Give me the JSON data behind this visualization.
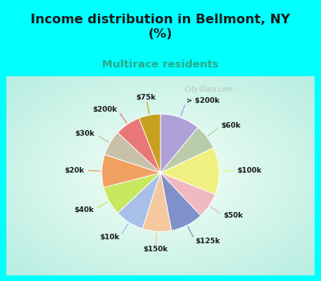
{
  "title": "Income distribution in Bellmont, NY\n(%)",
  "subtitle": "Multirace residents",
  "bg_cyan": "#00FFFF",
  "labels": [
    "> $200k",
    "$60k",
    "$100k",
    "$50k",
    "$125k",
    "$150k",
    "$10k",
    "$40k",
    "$20k",
    "$30k",
    "$200k",
    "$75k"
  ],
  "sizes": [
    11,
    7,
    13,
    7,
    9,
    8,
    8,
    8,
    9,
    7,
    7,
    6
  ],
  "colors": [
    "#b0a0d8",
    "#b8ccaa",
    "#f0f080",
    "#f0b8c0",
    "#8090c8",
    "#f5c8a0",
    "#a8c0e8",
    "#c8e860",
    "#f0a060",
    "#c8c0a8",
    "#e87878",
    "#c8a020"
  ],
  "watermark": "  City-Data.com",
  "title_color": "#1a1a1a",
  "subtitle_color": "#2aaa88",
  "label_color": "#1a1a1a",
  "label_fontsize": 6.5,
  "title_fontsize": 11.5,
  "subtitle_fontsize": 9.5
}
